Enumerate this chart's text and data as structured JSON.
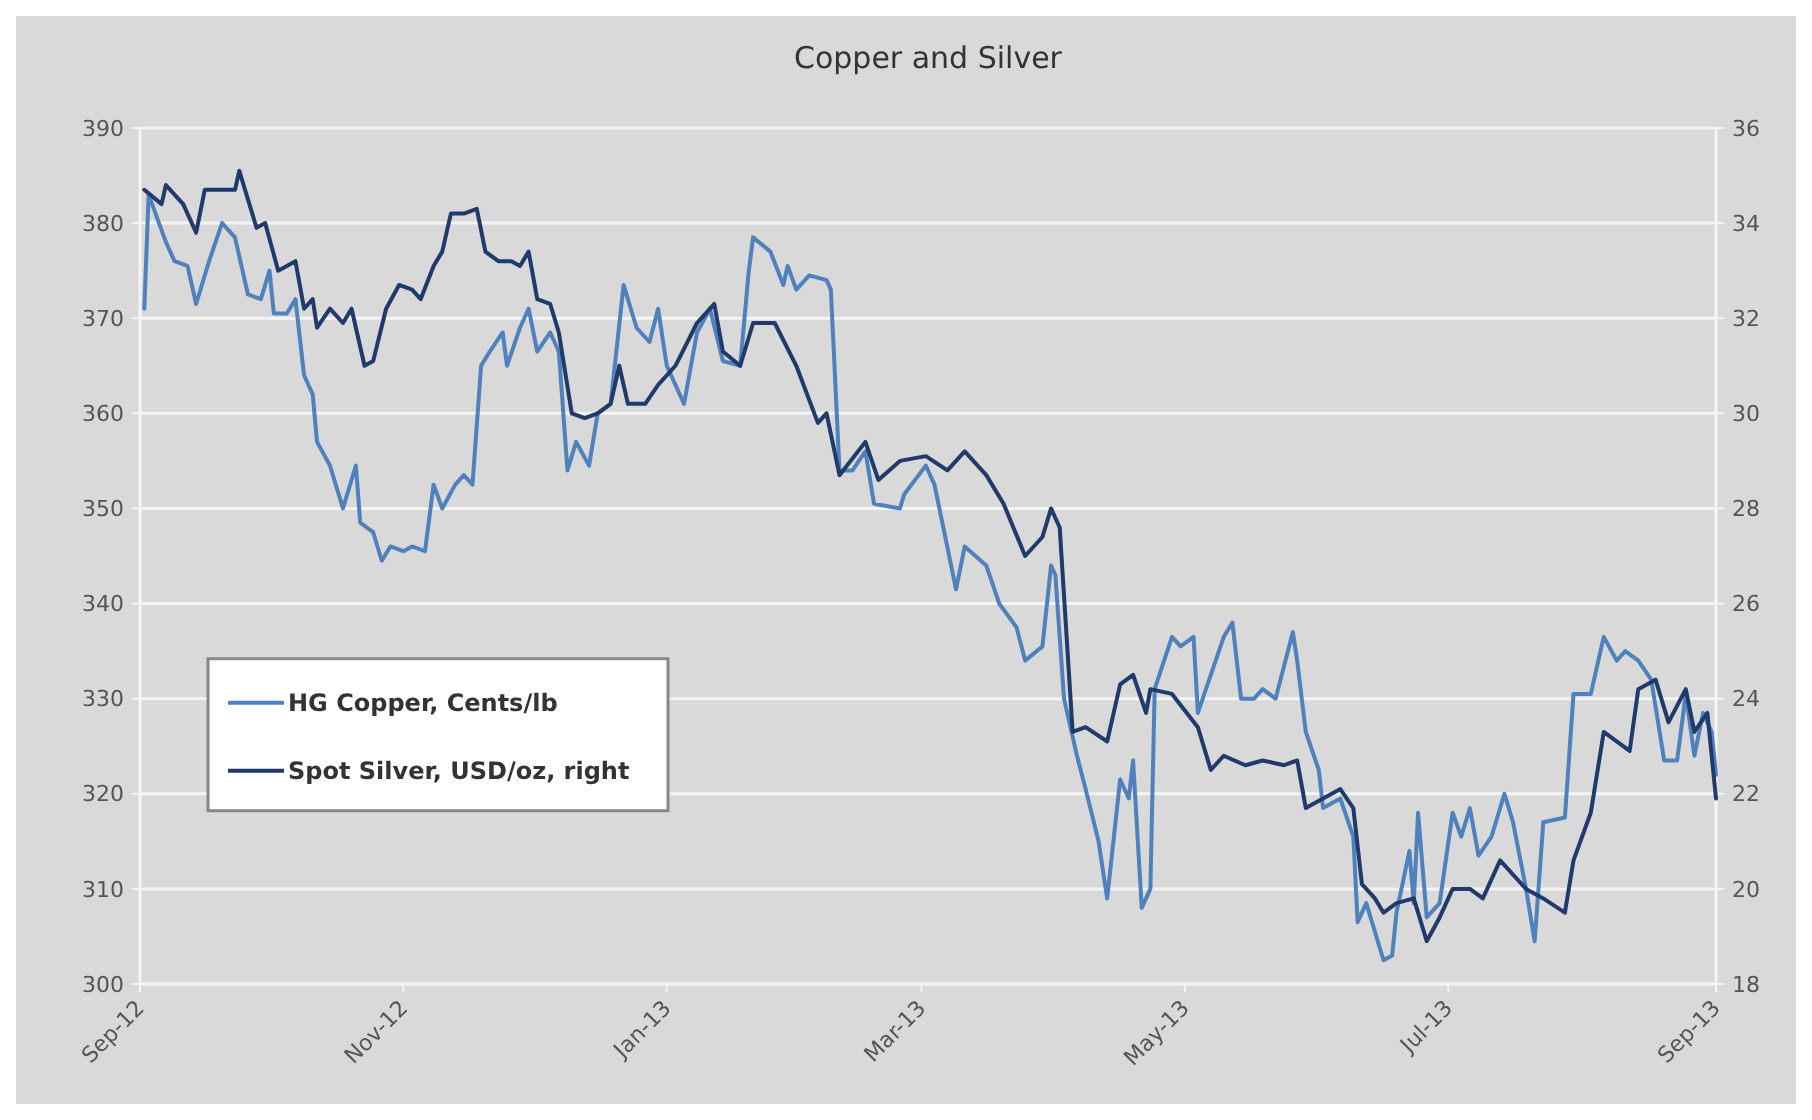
{
  "chart_data": {
    "type": "line",
    "title": "Copper and Silver",
    "xlim": [
      "2012-09-01",
      "2013-09-01"
    ],
    "xticks": [
      {
        "value": "2012-09-01",
        "label": "Sep-12"
      },
      {
        "value": "2012-11-01",
        "label": "Nov-12"
      },
      {
        "value": "2013-01-01",
        "label": "Jan-13"
      },
      {
        "value": "2013-03-01",
        "label": "Mar-13"
      },
      {
        "value": "2013-05-01",
        "label": "May-13"
      },
      {
        "value": "2013-07-01",
        "label": "Jul-13"
      },
      {
        "value": "2013-09-01",
        "label": "Sep-13"
      }
    ],
    "ylim": [
      300,
      390
    ],
    "yticks": [
      300,
      310,
      320,
      330,
      340,
      350,
      360,
      370,
      380,
      390
    ],
    "y2lim": [
      18,
      36
    ],
    "y2ticks": [
      18,
      20,
      22,
      24,
      26,
      28,
      30,
      32,
      34,
      36
    ],
    "grid": "y",
    "legend": "left",
    "line_style": "solid",
    "marker": "none",
    "series": [
      {
        "name": "HG Copper, Cents/lb",
        "color": "#4f81bd",
        "x": [
          "2012-09-02",
          "2012-09-03",
          "2012-09-07",
          "2012-09-09",
          "2012-09-12",
          "2012-09-14",
          "2012-09-17",
          "2012-09-20",
          "2012-09-23",
          "2012-09-26",
          "2012-09-29",
          "2012-10-01",
          "2012-10-02",
          "2012-10-05",
          "2012-10-07",
          "2012-10-09",
          "2012-10-11",
          "2012-10-12",
          "2012-10-15",
          "2012-10-18",
          "2012-10-21",
          "2012-10-22",
          "2012-10-25",
          "2012-10-27",
          "2012-10-29",
          "2012-11-01",
          "2012-11-03",
          "2012-11-06",
          "2012-11-08",
          "2012-11-10",
          "2012-11-13",
          "2012-11-15",
          "2012-11-17",
          "2012-11-19",
          "2012-11-21",
          "2012-11-24",
          "2012-11-25",
          "2012-11-28",
          "2012-11-30",
          "2012-12-02",
          "2012-12-05",
          "2012-12-07",
          "2012-12-09",
          "2012-12-11",
          "2012-12-14",
          "2012-12-16",
          "2012-12-19",
          "2012-12-22",
          "2012-12-25",
          "2012-12-28",
          "2012-12-30",
          "2013-01-01",
          "2013-01-05",
          "2013-01-08",
          "2013-01-11",
          "2013-01-14",
          "2013-01-18",
          "2013-01-20",
          "2013-01-21",
          "2013-01-25",
          "2013-01-28",
          "2013-01-29",
          "2013-01-31",
          "2013-02-03",
          "2013-02-07",
          "2013-02-08",
          "2013-02-10",
          "2013-02-13",
          "2013-02-16",
          "2013-02-18",
          "2013-02-24",
          "2013-02-25",
          "2013-03-02",
          "2013-03-04",
          "2013-03-09",
          "2013-03-11",
          "2013-03-16",
          "2013-03-19",
          "2013-03-23",
          "2013-03-25",
          "2013-03-29",
          "2013-03-31",
          "2013-04-01",
          "2013-04-03",
          "2013-04-06",
          "2013-04-08",
          "2013-04-11",
          "2013-04-13",
          "2013-04-16",
          "2013-04-18",
          "2013-04-19",
          "2013-04-21",
          "2013-04-23",
          "2013-04-24",
          "2013-04-28",
          "2013-04-30",
          "2013-05-03",
          "2013-05-04",
          "2013-05-07",
          "2013-05-10",
          "2013-05-12",
          "2013-05-14",
          "2013-05-17",
          "2013-05-19",
          "2013-05-22",
          "2013-05-26",
          "2013-05-27",
          "2013-05-29",
          "2013-06-01",
          "2013-06-02",
          "2013-06-06",
          "2013-06-09",
          "2013-06-10",
          "2013-06-12",
          "2013-06-16",
          "2013-06-18",
          "2013-06-19",
          "2013-06-22",
          "2013-06-23",
          "2013-06-24",
          "2013-06-26",
          "2013-06-29",
          "2013-07-02",
          "2013-07-04",
          "2013-07-06",
          "2013-07-08",
          "2013-07-11",
          "2013-07-14",
          "2013-07-16",
          "2013-07-19",
          "2013-07-21",
          "2013-07-23",
          "2013-07-28",
          "2013-07-30",
          "2013-08-03",
          "2013-08-06",
          "2013-08-09",
          "2013-08-11",
          "2013-08-14",
          "2013-08-17",
          "2013-08-20",
          "2013-08-23",
          "2013-08-25",
          "2013-08-27",
          "2013-08-29",
          "2013-08-31",
          "2013-09-01"
        ],
        "values": [
          371,
          383,
          378,
          376,
          375.5,
          371.5,
          376,
          380,
          378.5,
          372.5,
          372,
          375,
          370.5,
          370.5,
          372,
          364,
          362,
          357,
          354.5,
          350,
          354.5,
          348.5,
          347.5,
          344.5,
          346,
          345.5,
          346,
          345.5,
          352.5,
          350,
          352.5,
          353.5,
          352.5,
          365,
          366.5,
          368.5,
          365,
          369,
          371,
          366.5,
          368.5,
          366.5,
          354,
          357,
          354.5,
          360,
          361,
          373.5,
          369,
          367.5,
          371,
          365,
          361,
          368.5,
          371,
          365.5,
          365,
          375,
          378.5,
          377,
          373.5,
          375.5,
          373,
          374.5,
          374,
          373,
          354,
          354,
          356,
          350.5,
          350,
          351.5,
          354.5,
          352.5,
          341.5,
          346,
          344,
          340,
          337.5,
          334,
          335.5,
          344,
          343,
          330,
          324,
          320.5,
          315,
          309,
          321.5,
          319.5,
          323.5,
          308,
          310,
          331,
          336.5,
          335.5,
          336.5,
          328.5,
          332.5,
          336.5,
          338,
          330,
          330,
          331,
          330,
          337,
          334,
          326.5,
          322.5,
          318.5,
          319.5,
          315.5,
          306.5,
          308.5,
          302.5,
          303,
          307.5,
          314,
          308.5,
          318,
          307,
          308.5,
          318,
          315.5,
          318.5,
          313.5,
          315.5,
          320,
          317,
          310,
          304.5,
          317,
          317.5,
          330.5,
          330.5,
          336.5,
          334,
          335,
          334,
          332,
          323.5,
          323.5,
          330.5,
          324,
          328.5,
          326.5,
          322
        ]
      },
      {
        "name": "Spot Silver, USD/oz, right",
        "color": "#1f3a6b",
        "axis": "y2",
        "x": [
          "2012-09-02",
          "2012-09-06",
          "2012-09-07",
          "2012-09-11",
          "2012-09-14",
          "2012-09-16",
          "2012-09-23",
          "2012-09-24",
          "2012-09-26",
          "2012-09-28",
          "2012-09-30",
          "2012-10-03",
          "2012-10-07",
          "2012-10-09",
          "2012-10-11",
          "2012-10-12",
          "2012-10-15",
          "2012-10-18",
          "2012-10-20",
          "2012-10-23",
          "2012-10-25",
          "2012-10-28",
          "2012-10-31",
          "2012-11-03",
          "2012-11-05",
          "2012-11-08",
          "2012-11-10",
          "2012-11-12",
          "2012-11-15",
          "2012-11-18",
          "2012-11-20",
          "2012-11-23",
          "2012-11-26",
          "2012-11-28",
          "2012-11-30",
          "2012-12-02",
          "2012-12-05",
          "2012-12-07",
          "2012-12-10",
          "2012-12-13",
          "2012-12-16",
          "2012-12-19",
          "2012-12-21",
          "2012-12-23",
          "2012-12-27",
          "2012-12-30",
          "2013-01-03",
          "2013-01-08",
          "2013-01-12",
          "2013-01-14",
          "2013-01-18",
          "2013-01-21",
          "2013-01-26",
          "2013-01-31",
          "2013-02-05",
          "2013-02-07",
          "2013-02-10",
          "2013-02-16",
          "2013-02-19",
          "2013-02-24",
          "2013-03-02",
          "2013-03-07",
          "2013-03-11",
          "2013-03-16",
          "2013-03-20",
          "2013-03-25",
          "2013-03-29",
          "2013-03-31",
          "2013-04-02",
          "2013-04-05",
          "2013-04-08",
          "2013-04-13",
          "2013-04-16",
          "2013-04-19",
          "2013-04-22",
          "2013-04-23",
          "2013-04-28",
          "2013-05-04",
          "2013-05-07",
          "2013-05-10",
          "2013-05-15",
          "2013-05-19",
          "2013-05-24",
          "2013-05-27",
          "2013-05-29",
          "2013-06-02",
          "2013-06-06",
          "2013-06-09",
          "2013-06-11",
          "2013-06-14",
          "2013-06-16",
          "2013-06-19",
          "2013-06-23",
          "2013-06-26",
          "2013-06-29",
          "2013-07-02",
          "2013-07-06",
          "2013-07-09",
          "2013-07-13",
          "2013-07-19",
          "2013-07-23",
          "2013-07-28",
          "2013-07-30",
          "2013-08-03",
          "2013-08-06",
          "2013-08-12",
          "2013-08-14",
          "2013-08-18",
          "2013-08-21",
          "2013-08-25",
          "2013-08-27",
          "2013-08-30",
          "2013-09-01"
        ],
        "values": [
          34.7,
          34.4,
          34.8,
          34.4,
          33.8,
          34.7,
          34.7,
          35.1,
          34.5,
          33.9,
          34,
          33,
          33.2,
          32.2,
          32.4,
          31.8,
          32.2,
          31.9,
          32.2,
          31,
          31.1,
          32.2,
          32.7,
          32.6,
          32.4,
          33.1,
          33.4,
          34.2,
          34.2,
          34.3,
          33.4,
          33.2,
          33.2,
          33.1,
          33.4,
          32.4,
          32.3,
          31.7,
          30,
          29.9,
          30,
          30.2,
          31,
          30.2,
          30.2,
          30.6,
          31,
          31.9,
          32.3,
          31.3,
          31,
          31.9,
          31.9,
          31,
          29.8,
          30,
          28.7,
          29.4,
          28.6,
          29,
          29.1,
          28.8,
          29.2,
          28.7,
          28.1,
          27,
          27.4,
          28,
          27.6,
          23.3,
          23.4,
          23.1,
          24.3,
          24.5,
          23.7,
          24.2,
          24.1,
          23.4,
          22.5,
          22.8,
          22.6,
          22.7,
          22.6,
          22.7,
          21.7,
          21.9,
          22.1,
          21.7,
          20.1,
          19.8,
          19.5,
          19.7,
          19.8,
          18.9,
          19.4,
          20,
          20,
          19.8,
          20.6,
          20,
          19.8,
          19.5,
          20.6,
          21.6,
          23.3,
          22.9,
          24.2,
          24.4,
          23.5,
          24.2,
          23.3,
          23.7,
          21.9
        ]
      }
    ]
  }
}
